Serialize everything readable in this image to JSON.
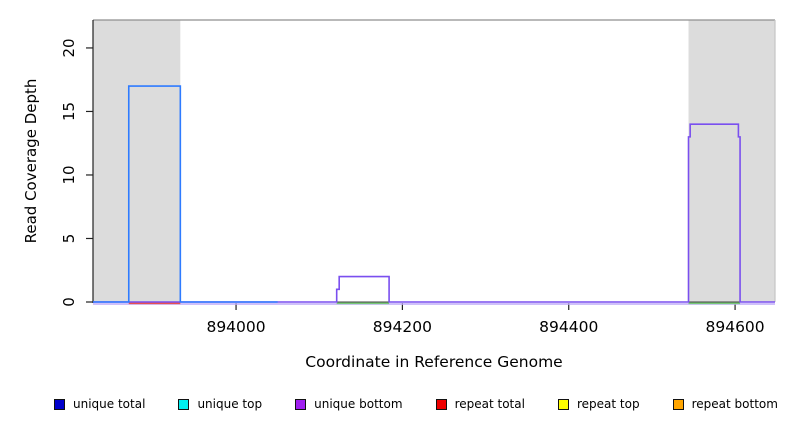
{
  "figure": {
    "xlabel": "Coordinate in Reference Genome",
    "ylabel": "Read Coverage Depth"
  },
  "legend": {
    "items": [
      {
        "label": "unique total",
        "color": "#0000CC",
        "slug": "unique-total"
      },
      {
        "label": "unique top",
        "color": "#00EEEE",
        "slug": "unique-top"
      },
      {
        "label": "unique bottom",
        "color": "#A020F0",
        "slug": "unique-bottom"
      },
      {
        "label": "repeat total",
        "color": "#EE0000",
        "slug": "repeat-total"
      },
      {
        "label": "repeat top",
        "color": "#FFFF00",
        "slug": "repeat-top"
      },
      {
        "label": "repeat bottom",
        "color": "#FFA500",
        "slug": "repeat-bottom"
      }
    ]
  },
  "chart_data": {
    "type": "line",
    "subtype": "step-coverage",
    "title": "",
    "xlabel": "Coordinate in Reference Genome",
    "ylabel": "Read Coverage Depth",
    "xlim": [
      893828,
      894648
    ],
    "ylim": [
      0,
      22.2
    ],
    "x_ticks": [
      894000,
      894200,
      894400,
      894600
    ],
    "y_ticks": [
      0,
      5,
      10,
      15,
      20
    ],
    "grid": false,
    "legend_position": "bottom",
    "border_colors": {
      "top": "#8f8f8f",
      "right": "#c4c4c4",
      "left": "#222222",
      "bottom": "#444444"
    },
    "highlight_regions": [
      {
        "name": "left-shaded-region",
        "x0": 893828,
        "x1": 893933,
        "color": "#DCDCDC"
      },
      {
        "name": "right-shaded-region",
        "x0": 894544,
        "x1": 894648,
        "color": "#DCDCDC"
      }
    ],
    "series": [
      {
        "name": "unique bottom",
        "color": "#7A4FEF",
        "step_points": [
          [
            893828,
            0
          ],
          [
            894121,
            0
          ],
          [
            894121,
            1
          ],
          [
            894124,
            1
          ],
          [
            894124,
            2
          ],
          [
            894184,
            2
          ],
          [
            894184,
            0
          ],
          [
            894544,
            0
          ],
          [
            894544,
            13
          ],
          [
            894546,
            13
          ],
          [
            894546,
            14
          ],
          [
            894604,
            14
          ],
          [
            894604,
            13
          ],
          [
            894606,
            13
          ],
          [
            894606,
            0
          ],
          [
            894648,
            0
          ]
        ]
      },
      {
        "name": "unique total",
        "color": "#2E7BFF",
        "step_points": [
          [
            893828,
            0
          ],
          [
            893871,
            0
          ],
          [
            893871,
            17
          ],
          [
            893933,
            17
          ],
          [
            893933,
            0
          ],
          [
            894050,
            0
          ]
        ]
      }
    ],
    "zero_level_overlays": [
      {
        "name": "light-purple-zero-line",
        "color": "#BFABF8",
        "x0": 893828,
        "x1": 894648,
        "offset": 2.0
      },
      {
        "name": "red-zero-segment",
        "color": "#E85050",
        "x0": 893871,
        "x1": 893933,
        "offset": 1.3
      },
      {
        "name": "green-zero-segment-mid",
        "color": "#77C877",
        "x0": 894121,
        "x1": 894184,
        "offset": 1.3
      },
      {
        "name": "green-zero-segment-right",
        "color": "#77C877",
        "x0": 894544,
        "x1": 894606,
        "offset": 1.3
      }
    ]
  }
}
